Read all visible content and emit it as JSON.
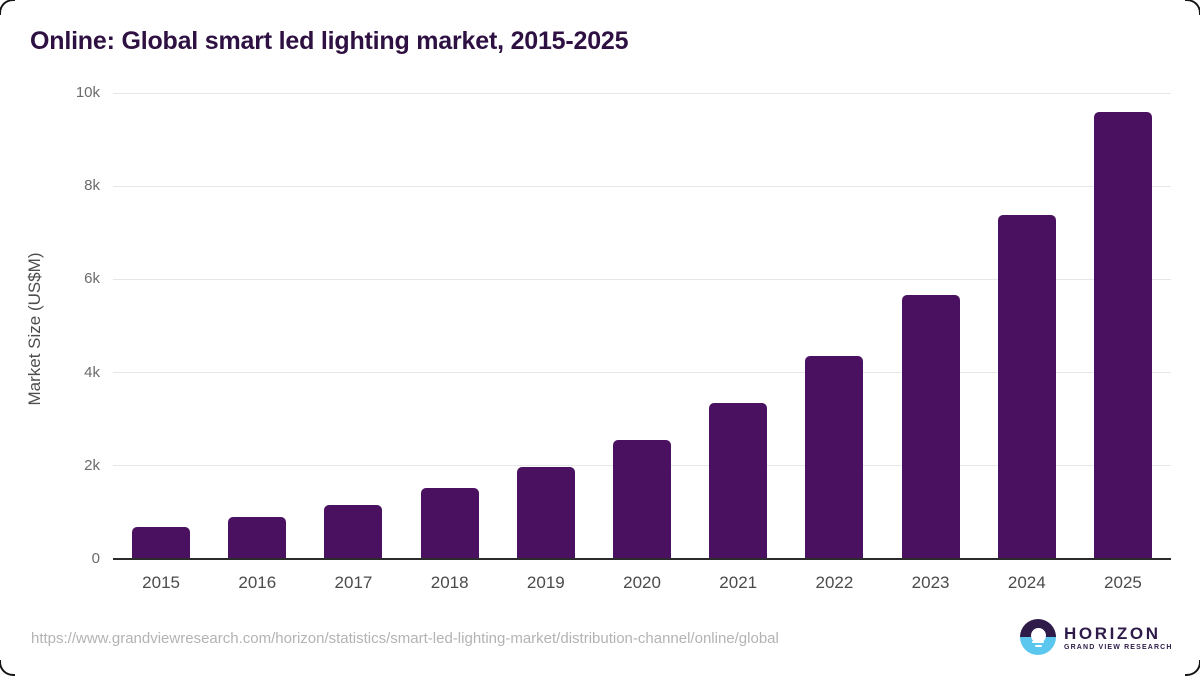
{
  "page": {
    "title": "Online: Global smart led lighting market, 2015-2025"
  },
  "chart_data": {
    "type": "bar",
    "title": "Online: Global smart led lighting market, 2015-2025",
    "categories": [
      "2015",
      "2016",
      "2017",
      "2018",
      "2019",
      "2020",
      "2021",
      "2022",
      "2023",
      "2024",
      "2025"
    ],
    "values": [
      690,
      900,
      1160,
      1530,
      1980,
      2560,
      3340,
      4360,
      5670,
      7380,
      9600
    ],
    "xlabel": "",
    "ylabel": "Market Size (US$M)",
    "ylim": [
      0,
      10000
    ],
    "yticks": [
      {
        "value": 0,
        "label": "0"
      },
      {
        "value": 2000,
        "label": "2k"
      },
      {
        "value": 4000,
        "label": "4k"
      },
      {
        "value": 6000,
        "label": "6k"
      },
      {
        "value": 8000,
        "label": "8k"
      },
      {
        "value": 10000,
        "label": "10k"
      }
    ],
    "grid": true,
    "legend": false,
    "bar_color": "#4a1161"
  },
  "footer": {
    "source_url": "https://www.grandviewresearch.com/horizon/statistics/smart-led-lighting-market/distribution-channel/online/global",
    "logo": {
      "brand": "HORIZON",
      "tagline": "GRAND VIEW RESEARCH"
    }
  },
  "colors": {
    "bar": "#4a1161",
    "title_text": "#2e1142",
    "grid_line": "#e7e7e9",
    "axis_line": "#2b2b2b",
    "url_text": "#b3b3b3",
    "logo_purple": "#2e1b49",
    "logo_blue": "#5bc7ef"
  }
}
